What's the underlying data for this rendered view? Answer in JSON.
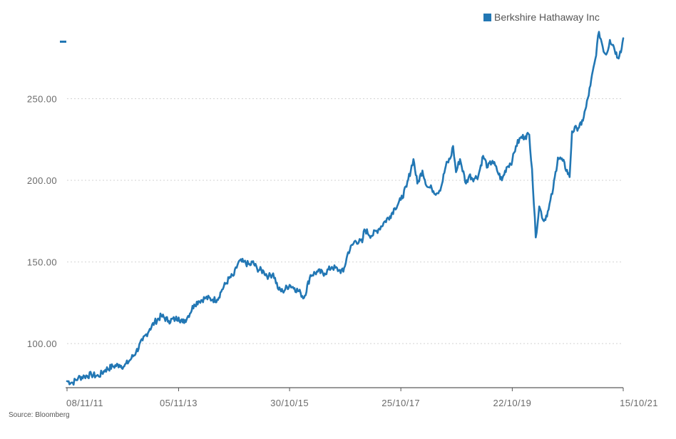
{
  "legend": {
    "label": "Berkshire Hathaway Inc",
    "color": "#2277b4"
  },
  "source": "Source: Bloomberg",
  "chart_data": {
    "type": "line",
    "title": "",
    "xlabel": "",
    "ylabel": "",
    "ylim": [
      73,
      293
    ],
    "grid": "horizontal dotted",
    "legend_position": "top-right",
    "y_ticks": [
      {
        "value": 100,
        "label": "100.00"
      },
      {
        "value": 150,
        "label": "150.00"
      },
      {
        "value": 200,
        "label": "200.00"
      },
      {
        "value": 250,
        "label": "250.00"
      }
    ],
    "x_range": [
      "2011-11-08",
      "2021-10-15"
    ],
    "x_ticks": [
      {
        "date": "2011-11-08",
        "label": "08/11/11"
      },
      {
        "date": "2013-11-05",
        "label": "05/11/13"
      },
      {
        "date": "2015-10-30",
        "label": "30/10/15"
      },
      {
        "date": "2017-10-25",
        "label": "25/10/17"
      },
      {
        "date": "2019-10-22",
        "label": "22/10/19"
      },
      {
        "date": "2021-10-15",
        "label": "15/10/21"
      }
    ],
    "series": [
      {
        "name": "Berkshire Hathaway Inc",
        "color": "#2277b4",
        "points": [
          [
            "2011-11-08",
            77
          ],
          [
            "2011-12-15",
            76
          ],
          [
            "2012-01-20",
            79
          ],
          [
            "2012-03-01",
            80
          ],
          [
            "2012-04-15",
            81
          ],
          [
            "2012-06-01",
            80
          ],
          [
            "2012-07-15",
            84
          ],
          [
            "2012-09-01",
            86
          ],
          [
            "2012-10-15",
            87
          ],
          [
            "2012-11-15",
            86
          ],
          [
            "2013-01-01",
            91
          ],
          [
            "2013-02-01",
            95
          ],
          [
            "2013-03-15",
            102
          ],
          [
            "2013-05-01",
            109
          ],
          [
            "2013-06-01",
            113
          ],
          [
            "2013-07-15",
            117
          ],
          [
            "2013-09-01",
            114
          ],
          [
            "2013-10-15",
            115
          ],
          [
            "2013-11-05",
            116
          ],
          [
            "2013-12-01",
            113
          ],
          [
            "2014-01-01",
            116
          ],
          [
            "2014-02-15",
            124
          ],
          [
            "2014-03-15",
            126
          ],
          [
            "2014-05-01",
            128
          ],
          [
            "2014-06-15",
            127
          ],
          [
            "2014-07-15",
            127
          ],
          [
            "2014-08-15",
            133
          ],
          [
            "2014-10-01",
            140
          ],
          [
            "2014-11-01",
            142
          ],
          [
            "2014-12-01",
            150
          ],
          [
            "2015-01-01",
            150
          ],
          [
            "2015-02-15",
            148
          ],
          [
            "2015-03-01",
            150
          ],
          [
            "2015-04-01",
            146
          ],
          [
            "2015-05-15",
            144
          ],
          [
            "2015-06-15",
            141
          ],
          [
            "2015-07-15",
            143
          ],
          [
            "2015-08-20",
            133
          ],
          [
            "2015-09-15",
            132
          ],
          [
            "2015-10-30",
            136
          ],
          [
            "2015-12-01",
            134
          ],
          [
            "2016-01-10",
            131
          ],
          [
            "2016-02-01",
            128
          ],
          [
            "2016-03-15",
            142
          ],
          [
            "2016-05-01",
            144
          ],
          [
            "2016-06-15",
            143
          ],
          [
            "2016-08-01",
            147
          ],
          [
            "2016-09-15",
            145
          ],
          [
            "2016-10-15",
            144
          ],
          [
            "2016-11-15",
            156
          ],
          [
            "2017-01-01",
            163
          ],
          [
            "2017-02-15",
            162
          ],
          [
            "2017-03-01",
            170
          ],
          [
            "2017-04-15",
            166
          ],
          [
            "2017-06-01",
            170
          ],
          [
            "2017-07-15",
            175
          ],
          [
            "2017-08-15",
            178
          ],
          [
            "2017-09-15",
            183
          ],
          [
            "2017-10-25",
            188
          ],
          [
            "2017-12-01",
            196
          ],
          [
            "2018-01-15",
            213
          ],
          [
            "2018-02-10",
            198
          ],
          [
            "2018-03-15",
            206
          ],
          [
            "2018-04-15",
            196
          ],
          [
            "2018-05-15",
            195
          ],
          [
            "2018-06-15",
            192
          ],
          [
            "2018-07-15",
            196
          ],
          [
            "2018-08-15",
            209
          ],
          [
            "2018-09-15",
            214
          ],
          [
            "2018-10-01",
            221
          ],
          [
            "2018-10-20",
            205
          ],
          [
            "2018-11-15",
            213
          ],
          [
            "2018-12-24",
            198
          ],
          [
            "2019-01-15",
            203
          ],
          [
            "2019-02-15",
            201
          ],
          [
            "2019-03-15",
            203
          ],
          [
            "2019-04-15",
            215
          ],
          [
            "2019-05-15",
            208
          ],
          [
            "2019-06-15",
            212
          ],
          [
            "2019-07-15",
            206
          ],
          [
            "2019-08-15",
            200
          ],
          [
            "2019-09-15",
            208
          ],
          [
            "2019-10-22",
            212
          ],
          [
            "2019-11-15",
            221
          ],
          [
            "2019-12-15",
            226
          ],
          [
            "2020-01-15",
            227
          ],
          [
            "2020-02-10",
            228
          ],
          [
            "2020-02-28",
            207
          ],
          [
            "2020-03-23",
            165
          ],
          [
            "2020-04-15",
            184
          ],
          [
            "2020-05-15",
            175
          ],
          [
            "2020-06-15",
            182
          ],
          [
            "2020-07-15",
            195
          ],
          [
            "2020-08-15",
            214
          ],
          [
            "2020-09-15",
            212
          ],
          [
            "2020-10-30",
            202
          ],
          [
            "2020-11-15",
            230
          ],
          [
            "2020-12-15",
            232
          ],
          [
            "2021-01-15",
            234
          ],
          [
            "2021-02-15",
            245
          ],
          [
            "2021-03-15",
            258
          ],
          [
            "2021-04-15",
            274
          ],
          [
            "2021-05-10",
            291
          ],
          [
            "2021-06-15",
            278
          ],
          [
            "2021-07-01",
            278
          ],
          [
            "2021-07-20",
            286
          ],
          [
            "2021-08-10",
            283
          ],
          [
            "2021-09-10",
            275
          ],
          [
            "2021-09-25",
            279
          ],
          [
            "2021-10-05",
            281
          ],
          [
            "2021-10-15",
            287
          ]
        ]
      }
    ]
  }
}
